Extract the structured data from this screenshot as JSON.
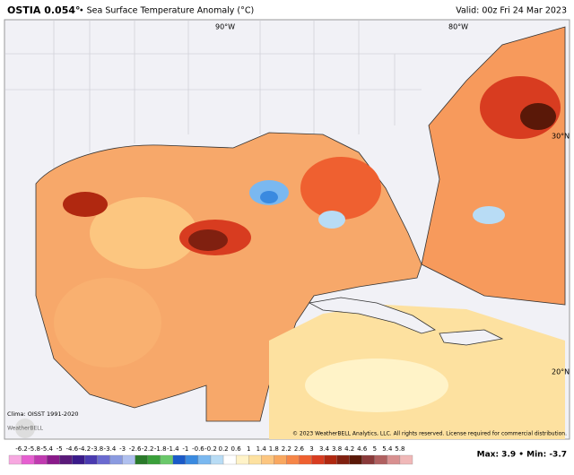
{
  "header": {
    "title": "OSTIA 0.054°",
    "subtitle": "• Sea Surface Temperature Anomaly (°C)",
    "valid": "Valid: 00z Fri 24 Mar 2023"
  },
  "map": {
    "labels": [
      "90°W",
      "80°W",
      "30°N",
      "20°N"
    ]
  },
  "footer": {
    "clima": "Clima: OISST 1991-2020",
    "logo": "WeatherBELL",
    "copyright": "© 2023 WeatherBELL Analytics, LLC. All rights reserved. License required for commercial distribution.",
    "stats": "Max: 3.9 • Min: -3.7"
  },
  "legend": {
    "ticks": [
      -6.2,
      -5.8,
      -5.4,
      -5,
      -4.6,
      -4.2,
      -3.8,
      -3.4,
      -3,
      -2.6,
      -2.2,
      -1.8,
      -1.4,
      -1,
      -0.6,
      -0.2,
      0.2,
      0.6,
      1,
      1.4,
      1.8,
      2.2,
      2.6,
      3,
      3.4,
      3.8,
      4.2,
      4.6,
      5,
      5.4,
      5.8
    ],
    "colors": [
      "#f7a8e0",
      "#e65fd0",
      "#c03ab0",
      "#8a1a8a",
      "#5a1a7a",
      "#3a1a8a",
      "#4a3ab0",
      "#6a6ad0",
      "#8a9ae0",
      "#b0c0ef",
      "#2a7a2a",
      "#3aa03a",
      "#6ac86a",
      "#1a5ac8",
      "#3a8ae0",
      "#7ab8f0",
      "#b8dcf5",
      "#ffffff",
      "#fff3c8",
      "#fde1a0",
      "#fcc680",
      "#f9a860",
      "#f68648",
      "#ef6030",
      "#d83c20",
      "#b02810",
      "#802010",
      "#5a1808",
      "#8a3a3a",
      "#b06060",
      "#d89090",
      "#f0b8b8"
    ]
  }
}
